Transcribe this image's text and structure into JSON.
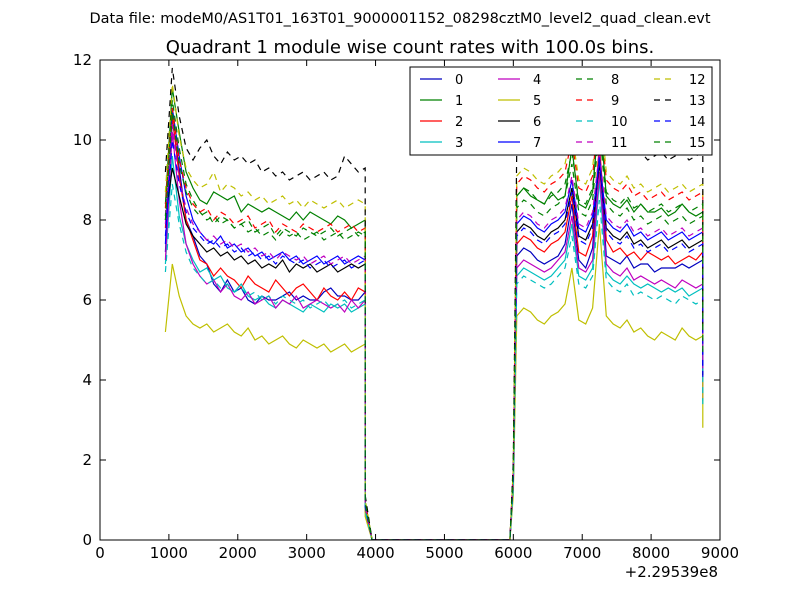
{
  "suptitle": "Data file: modeM0/AS1T01_163T01_9000001152_08298cztM0_level2_quad_clean.evt",
  "chart_data": {
    "type": "line",
    "title": "Quadrant 1 module wise count rates with 100.0s bins.",
    "xlabel": "",
    "ylabel": "",
    "x_offset_label": "+2.29539e8",
    "xlim": [
      0,
      9000
    ],
    "ylim": [
      0,
      12
    ],
    "xticks": [
      0,
      1000,
      2000,
      3000,
      4000,
      5000,
      6000,
      7000,
      8000,
      9000
    ],
    "yticks": [
      0,
      2,
      4,
      6,
      8,
      10,
      12
    ],
    "grid": false,
    "legend_position": "top-right",
    "legend_columns": 4,
    "gap": {
      "start": 3950,
      "end": 5950,
      "value": 0
    },
    "segment1": {
      "x_start": 950,
      "x_end": 3850
    },
    "segment2": {
      "x_start": 6050,
      "x_end": 8750
    },
    "series": [
      {
        "name": "0",
        "color": "#0000bf",
        "dash": "solid",
        "seg1": [
          7.2,
          10.5,
          9.3,
          8.0,
          7.6,
          7.1,
          6.9,
          6.4,
          6.2,
          6.5,
          6.2,
          6.3,
          6.0,
          5.9,
          6.1,
          6.0,
          6.0,
          6.1,
          6.2,
          6.0,
          6.1,
          6.0,
          6.0,
          6.2,
          6.3,
          6.1,
          6.1,
          6.0,
          6.0,
          6.2
        ],
        "seg2": [
          7.1,
          7.3,
          7.2,
          7.0,
          6.9,
          7.0,
          7.1,
          7.4,
          8.4,
          7.0,
          6.8,
          7.3,
          9.7,
          7.1,
          7.0,
          6.9,
          7.1,
          6.8,
          6.9,
          6.9,
          6.7,
          6.8,
          6.8,
          6.8,
          6.9,
          6.8,
          6.9,
          7.0
        ]
      },
      {
        "name": "1",
        "color": "#008000",
        "dash": "solid",
        "seg1": [
          8.4,
          11.3,
          10.2,
          9.2,
          8.8,
          8.5,
          8.4,
          8.7,
          8.6,
          8.5,
          8.6,
          8.2,
          8.4,
          8.3,
          8.2,
          8.3,
          8.2,
          8.1,
          8.0,
          8.2,
          8.0,
          8.2,
          8.1,
          8.0,
          7.9,
          8.1,
          8.0,
          7.8,
          7.9,
          8.0
        ],
        "seg2": [
          8.6,
          8.8,
          8.6,
          8.5,
          8.4,
          8.7,
          8.5,
          8.6,
          9.8,
          8.4,
          8.3,
          8.7,
          10.8,
          8.6,
          8.4,
          8.3,
          8.5,
          8.2,
          8.4,
          8.2,
          8.2,
          8.3,
          8.1,
          8.2,
          8.4,
          8.2,
          8.1,
          8.2
        ]
      },
      {
        "name": "2",
        "color": "#ff0000",
        "dash": "solid",
        "seg1": [
          7.8,
          10.6,
          9.1,
          8.0,
          7.5,
          7.0,
          6.9,
          6.6,
          6.8,
          6.6,
          6.5,
          6.3,
          6.6,
          6.4,
          6.3,
          6.2,
          6.5,
          6.3,
          6.1,
          6.3,
          6.4,
          6.2,
          6.0,
          6.3,
          6.1,
          6.0,
          6.2,
          6.0,
          6.3,
          6.2
        ],
        "seg2": [
          7.4,
          7.6,
          7.5,
          7.3,
          7.2,
          7.4,
          7.5,
          7.7,
          8.6,
          7.2,
          7.1,
          7.6,
          9.9,
          7.5,
          7.2,
          7.3,
          7.1,
          7.2,
          7.0,
          7.2,
          7.1,
          7.0,
          7.1,
          6.9,
          7.0,
          7.1,
          7.0,
          7.2
        ]
      },
      {
        "name": "3",
        "color": "#00bfbf",
        "dash": "solid",
        "seg1": [
          6.9,
          9.6,
          8.1,
          7.4,
          7.0,
          6.7,
          6.8,
          6.5,
          6.6,
          6.3,
          6.2,
          6.4,
          6.1,
          6.0,
          6.1,
          5.9,
          5.8,
          6.0,
          5.9,
          5.8,
          5.7,
          5.9,
          5.8,
          5.7,
          5.9,
          5.8,
          5.9,
          5.7,
          5.8,
          5.9
        ],
        "seg2": [
          6.6,
          6.8,
          6.7,
          6.6,
          6.5,
          6.6,
          6.8,
          7.0,
          7.9,
          6.6,
          6.5,
          6.8,
          9.0,
          6.7,
          6.5,
          6.4,
          6.6,
          6.4,
          6.3,
          6.4,
          6.3,
          6.2,
          6.3,
          6.2,
          6.3,
          6.1,
          6.2,
          6.3
        ]
      },
      {
        "name": "4",
        "color": "#bf00bf",
        "dash": "solid",
        "seg1": [
          7.0,
          10.2,
          8.5,
          7.4,
          6.9,
          6.6,
          6.4,
          6.5,
          6.2,
          6.4,
          6.1,
          6.0,
          6.2,
          5.9,
          6.0,
          6.1,
          5.8,
          6.0,
          5.9,
          6.1,
          5.8,
          5.9,
          6.0,
          5.9,
          5.8,
          5.9,
          5.7,
          6.0,
          5.8,
          6.0
        ],
        "seg2": [
          6.8,
          7.0,
          6.9,
          6.8,
          6.7,
          6.8,
          7.0,
          7.2,
          8.1,
          6.8,
          6.7,
          7.0,
          9.2,
          6.9,
          6.7,
          6.6,
          6.8,
          6.5,
          6.6,
          6.5,
          6.4,
          6.5,
          6.4,
          6.3,
          6.5,
          6.4,
          6.3,
          6.4
        ]
      },
      {
        "name": "5",
        "color": "#bfbf00",
        "dash": "solid",
        "seg1": [
          5.2,
          6.9,
          6.1,
          5.6,
          5.4,
          5.3,
          5.4,
          5.2,
          5.3,
          5.4,
          5.2,
          5.1,
          5.3,
          5.0,
          5.1,
          4.9,
          5.0,
          5.1,
          4.9,
          4.8,
          5.0,
          4.9,
          4.8,
          4.9,
          4.7,
          4.8,
          4.9,
          4.7,
          4.8,
          4.9
        ],
        "seg2": [
          5.6,
          5.8,
          5.7,
          5.5,
          5.4,
          5.6,
          5.7,
          5.9,
          6.8,
          5.5,
          5.4,
          5.8,
          7.9,
          5.6,
          5.4,
          5.3,
          5.5,
          5.2,
          5.3,
          5.1,
          5.0,
          5.2,
          5.1,
          5.0,
          5.3,
          5.1,
          5.0,
          5.1
        ]
      },
      {
        "name": "6",
        "color": "#000000",
        "dash": "solid",
        "seg1": [
          8.0,
          9.3,
          8.6,
          7.9,
          7.6,
          7.4,
          7.2,
          7.3,
          7.1,
          7.2,
          7.0,
          7.1,
          6.9,
          7.0,
          6.8,
          6.9,
          6.8,
          7.0,
          6.7,
          6.9,
          6.8,
          6.9,
          6.7,
          6.8,
          6.9,
          6.7,
          6.8,
          6.9,
          6.8,
          6.9
        ],
        "seg2": [
          7.7,
          7.9,
          7.8,
          7.6,
          7.5,
          7.7,
          7.8,
          8.0,
          8.8,
          7.6,
          7.5,
          7.9,
          9.4,
          7.8,
          7.6,
          7.5,
          7.7,
          7.4,
          7.5,
          7.3,
          7.4,
          7.5,
          7.3,
          7.4,
          7.5,
          7.3,
          7.4,
          7.5
        ]
      },
      {
        "name": "7",
        "color": "#0000ff",
        "dash": "solid",
        "seg1": [
          7.4,
          10.8,
          9.6,
          8.6,
          8.0,
          7.7,
          7.5,
          7.4,
          7.6,
          7.3,
          7.4,
          7.2,
          7.3,
          7.1,
          7.2,
          7.0,
          7.1,
          7.2,
          7.0,
          7.1,
          6.9,
          7.0,
          7.1,
          6.9,
          7.0,
          7.1,
          6.9,
          7.0,
          7.1,
          7.0
        ],
        "seg2": [
          7.9,
          8.1,
          8.0,
          7.8,
          7.7,
          7.9,
          8.0,
          8.2,
          9.0,
          7.8,
          7.7,
          8.1,
          9.5,
          8.0,
          7.8,
          7.7,
          7.9,
          7.6,
          7.7,
          7.5,
          7.6,
          7.7,
          7.5,
          7.6,
          7.7,
          7.5,
          7.6,
          7.7
        ]
      },
      {
        "name": "8",
        "color": "#008000",
        "dash": "dashed",
        "seg1": [
          8.1,
          11.0,
          9.8,
          8.9,
          8.5,
          8.2,
          8.0,
          8.1,
          7.9,
          8.0,
          7.8,
          7.9,
          7.7,
          7.8,
          7.6,
          7.7,
          7.5,
          7.7,
          7.6,
          7.7,
          7.5,
          7.6,
          7.7,
          7.5,
          7.6,
          7.7,
          7.5,
          7.6,
          7.7,
          7.6
        ],
        "seg2": [
          8.3,
          8.5,
          8.4,
          8.2,
          8.1,
          8.3,
          8.4,
          8.6,
          9.4,
          8.2,
          8.1,
          8.5,
          10.3,
          8.4,
          8.2,
          8.1,
          8.3,
          8.0,
          8.1,
          7.9,
          8.0,
          8.1,
          7.9,
          8.0,
          8.1,
          7.9,
          8.0,
          8.1
        ]
      },
      {
        "name": "9",
        "color": "#ff0000",
        "dash": "dashed",
        "seg1": [
          8.3,
          10.8,
          9.5,
          8.8,
          8.4,
          8.2,
          8.3,
          8.0,
          8.2,
          8.1,
          7.9,
          8.0,
          8.1,
          7.8,
          7.9,
          8.0,
          7.7,
          7.9,
          7.8,
          7.7,
          7.9,
          7.8,
          7.7,
          7.8,
          7.9,
          7.7,
          7.8,
          7.9,
          7.7,
          7.8
        ],
        "seg2": [
          8.9,
          9.1,
          9.0,
          8.8,
          8.7,
          8.9,
          9.0,
          9.2,
          10.0,
          8.8,
          8.7,
          9.1,
          10.9,
          9.0,
          8.8,
          8.7,
          8.9,
          8.6,
          8.7,
          8.5,
          8.6,
          8.7,
          8.5,
          8.6,
          8.7,
          8.5,
          8.6,
          8.7
        ]
      },
      {
        "name": "10",
        "color": "#00bfbf",
        "dash": "dashed",
        "seg1": [
          6.7,
          8.9,
          7.9,
          7.2,
          6.8,
          6.6,
          6.4,
          6.5,
          6.3,
          6.4,
          6.2,
          6.3,
          6.1,
          6.2,
          6.0,
          6.1,
          5.9,
          6.1,
          6.0,
          5.9,
          6.0,
          5.8,
          5.9,
          6.0,
          5.8,
          5.9,
          6.0,
          5.8,
          5.9,
          6.0
        ],
        "seg2": [
          6.4,
          6.6,
          6.5,
          6.4,
          6.3,
          6.4,
          6.6,
          6.8,
          7.6,
          6.4,
          6.3,
          6.6,
          8.5,
          6.5,
          6.3,
          6.2,
          6.4,
          6.1,
          6.2,
          6.1,
          6.0,
          6.1,
          6.0,
          5.9,
          6.1,
          6.0,
          5.9,
          6.0
        ]
      },
      {
        "name": "11",
        "color": "#bf00bf",
        "dash": "dashed",
        "seg1": [
          7.9,
          10.4,
          9.0,
          8.3,
          7.9,
          7.7,
          7.5,
          7.6,
          7.4,
          7.5,
          7.3,
          7.4,
          7.2,
          7.3,
          7.1,
          7.2,
          7.0,
          7.2,
          7.1,
          7.0,
          7.1,
          6.9,
          7.0,
          7.1,
          6.9,
          7.0,
          7.1,
          6.9,
          7.0,
          7.1
        ],
        "seg2": [
          8.0,
          8.2,
          8.1,
          7.9,
          7.8,
          8.0,
          8.1,
          8.3,
          9.1,
          7.9,
          7.8,
          8.2,
          9.7,
          8.1,
          7.9,
          7.8,
          8.0,
          7.7,
          7.8,
          7.6,
          7.7,
          7.8,
          7.6,
          7.7,
          7.8,
          7.6,
          7.7,
          7.8
        ]
      },
      {
        "name": "12",
        "color": "#bfbf00",
        "dash": "dashed",
        "seg1": [
          8.7,
          11.4,
          10.1,
          9.3,
          9.0,
          8.8,
          8.9,
          9.2,
          8.7,
          8.9,
          8.8,
          8.6,
          8.7,
          8.5,
          8.6,
          8.4,
          8.5,
          8.6,
          8.4,
          8.5,
          8.3,
          8.5,
          8.4,
          8.3,
          8.4,
          8.5,
          8.3,
          8.4,
          8.5,
          8.4
        ],
        "seg2": [
          9.1,
          9.3,
          9.2,
          9.0,
          8.9,
          9.1,
          9.2,
          9.4,
          10.2,
          9.0,
          8.9,
          9.3,
          11.0,
          9.2,
          9.0,
          8.9,
          9.1,
          8.8,
          8.9,
          8.7,
          8.8,
          8.9,
          8.7,
          8.8,
          8.9,
          8.7,
          8.8,
          8.9
        ]
      },
      {
        "name": "13",
        "color": "#000000",
        "dash": "dashed",
        "seg1": [
          9.2,
          11.8,
          10.6,
          9.8,
          9.5,
          9.8,
          10.0,
          9.6,
          9.4,
          9.7,
          9.5,
          9.6,
          9.4,
          9.5,
          9.2,
          9.3,
          9.1,
          9.2,
          9.0,
          9.1,
          9.2,
          9.0,
          9.1,
          9.2,
          9.0,
          9.1,
          9.6,
          9.4,
          9.2,
          9.3
        ],
        "seg2": [
          9.9,
          10.2,
          10.1,
          9.8,
          9.7,
          9.9,
          10.0,
          10.3,
          11.0,
          9.8,
          9.7,
          10.1,
          11.4,
          10.0,
          9.8,
          9.7,
          9.9,
          9.6,
          9.7,
          9.5,
          9.6,
          9.7,
          9.5,
          9.6,
          9.7,
          9.5,
          9.6,
          9.7
        ]
      },
      {
        "name": "14",
        "color": "#0000ff",
        "dash": "dashed",
        "seg1": [
          7.6,
          10.0,
          8.9,
          8.2,
          7.8,
          7.6,
          7.4,
          7.5,
          7.3,
          7.4,
          7.2,
          7.3,
          7.1,
          7.2,
          7.0,
          7.1,
          6.9,
          7.1,
          7.0,
          6.9,
          7.0,
          6.8,
          6.9,
          7.0,
          6.8,
          6.9,
          7.0,
          6.8,
          6.9,
          7.0
        ],
        "seg2": [
          7.6,
          7.8,
          7.7,
          7.5,
          7.4,
          7.6,
          7.7,
          7.9,
          8.7,
          7.5,
          7.4,
          7.8,
          9.6,
          7.7,
          7.5,
          7.4,
          7.6,
          7.3,
          7.4,
          7.2,
          7.3,
          7.4,
          7.2,
          7.3,
          7.4,
          7.2,
          7.3,
          7.4
        ]
      },
      {
        "name": "15",
        "color": "#008000",
        "dash": "dashed",
        "seg1": [
          8.0,
          10.7,
          9.4,
          8.7,
          8.3,
          8.1,
          8.2,
          7.9,
          8.1,
          8.0,
          7.8,
          7.9,
          8.0,
          7.7,
          7.8,
          7.9,
          7.6,
          7.8,
          7.7,
          7.6,
          7.8,
          7.7,
          7.6,
          7.7,
          7.8,
          7.6,
          7.7,
          7.8,
          7.6,
          7.7
        ],
        "seg2": [
          8.6,
          8.8,
          8.7,
          8.5,
          8.4,
          8.6,
          8.7,
          8.9,
          9.7,
          8.5,
          8.4,
          8.8,
          10.6,
          8.7,
          8.5,
          8.4,
          8.6,
          8.3,
          8.4,
          8.2,
          8.3,
          8.4,
          8.2,
          8.3,
          8.4,
          8.2,
          8.3,
          8.4
        ]
      }
    ]
  }
}
